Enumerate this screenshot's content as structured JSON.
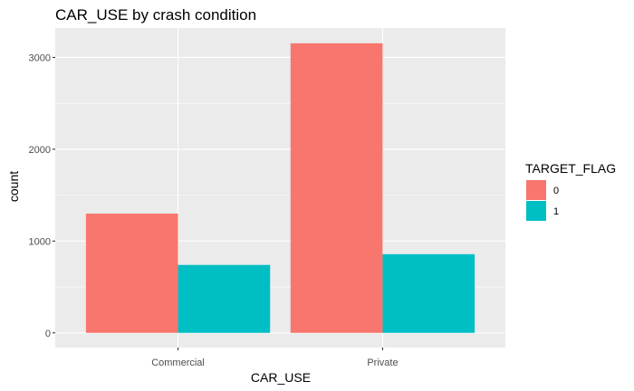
{
  "chart_data": {
    "type": "bar",
    "title": "CAR_USE by crash condition",
    "xlabel": "CAR_USE",
    "ylabel": "count",
    "categories": [
      "Commercial",
      "Private"
    ],
    "series": [
      {
        "name": "0",
        "values": [
          1299,
          3154
        ],
        "color": "#F8766D"
      },
      {
        "name": "1",
        "values": [
          740,
          857
        ],
        "color": "#00BFC4"
      }
    ],
    "ylim": [
      -160,
      3320
    ],
    "yticks": [
      0,
      1000,
      2000,
      3000
    ],
    "grid": true,
    "legend": {
      "title": "TARGET_FLAG",
      "position": "right"
    },
    "panel_background": "#EBEBEB"
  }
}
